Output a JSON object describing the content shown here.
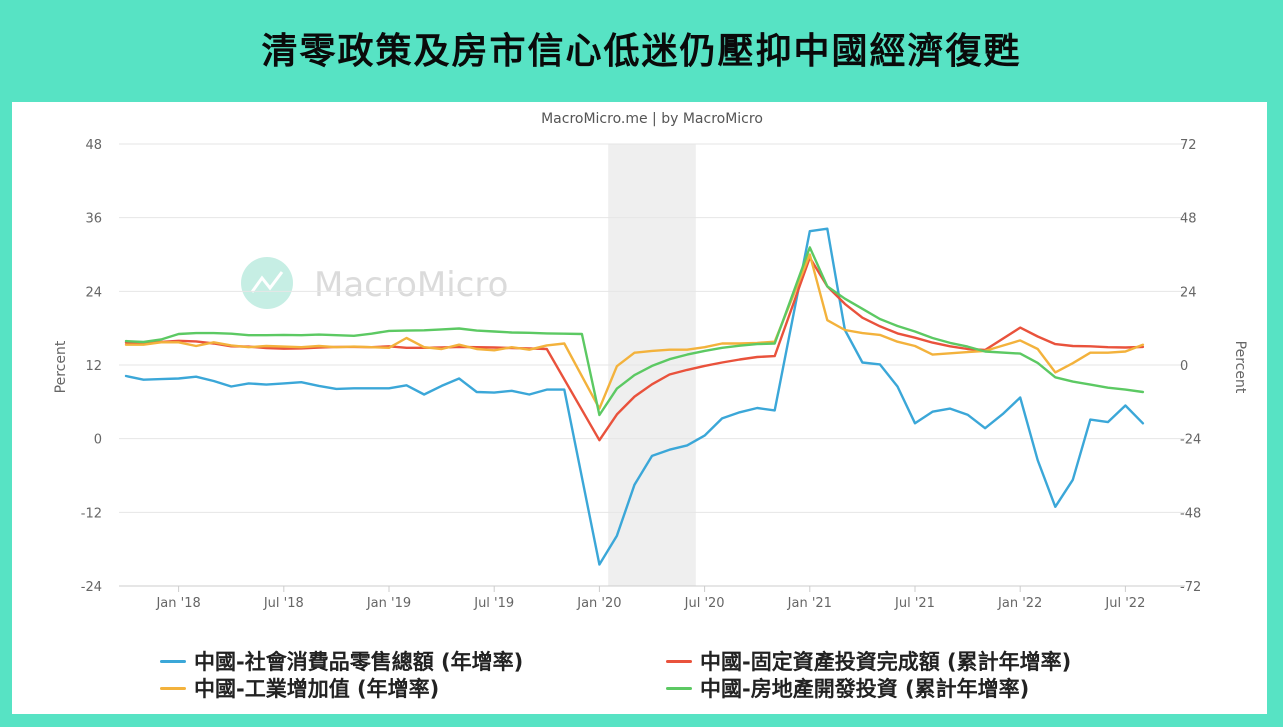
{
  "headline": "清零政策及房市信心低迷仍壓抑中國經濟復甦",
  "chart_data": {
    "type": "line",
    "subtitle": "MacroMicro.me | by MacroMicro",
    "watermark": "MacroMicro",
    "ylabel_left": "Percent",
    "ylabel_right": "Percent",
    "ylim_left": [
      -24,
      48
    ],
    "ylim_right": [
      -72,
      72
    ],
    "yticks_left": [
      "48",
      "36",
      "24",
      "12",
      "0",
      "-12",
      "-24"
    ],
    "yticks_right": [
      "72",
      "48",
      "24",
      "0",
      "-24",
      "-48",
      "-72"
    ],
    "xticks": [
      "Jan '18",
      "Jul '18",
      "Jan '19",
      "Jul '19",
      "Jan '20",
      "Jul '20",
      "Jan '21",
      "Jul '21",
      "Jan '22",
      "Jul '22"
    ],
    "recession_shading": [
      "2020-01",
      "2020-06"
    ],
    "x": [
      "2017-10",
      "2017-11",
      "2017-12",
      "2018-01",
      "2018-02",
      "2018-03",
      "2018-04",
      "2018-05",
      "2018-06",
      "2018-07",
      "2018-08",
      "2018-09",
      "2018-10",
      "2018-11",
      "2018-12",
      "2019-01",
      "2019-02",
      "2019-03",
      "2019-04",
      "2019-05",
      "2019-06",
      "2019-07",
      "2019-08",
      "2019-09",
      "2019-10",
      "2019-11",
      "2019-12",
      "2020-01",
      "2020-02",
      "2020-03",
      "2020-04",
      "2020-05",
      "2020-06",
      "2020-07",
      "2020-08",
      "2020-09",
      "2020-10",
      "2020-11",
      "2020-12",
      "2021-01",
      "2021-02",
      "2021-03",
      "2021-04",
      "2021-05",
      "2021-06",
      "2021-07",
      "2021-08",
      "2021-09",
      "2021-10",
      "2021-11",
      "2021-12",
      "2022-01",
      "2022-02",
      "2022-03",
      "2022-04",
      "2022-05",
      "2022-06",
      "2022-07",
      "2022-08",
      "2022-09"
    ],
    "series": [
      {
        "name": "中國-社會消費品零售總額 (年增率)",
        "axis": "left",
        "color": "#3ba7d8",
        "values": [
          10.2,
          9.6,
          9.7,
          9.8,
          10.1,
          9.4,
          8.5,
          9.0,
          8.8,
          9.0,
          9.2,
          8.6,
          8.1,
          8.2,
          8.2,
          8.2,
          8.7,
          7.2,
          8.6,
          9.8,
          7.6,
          7.5,
          7.8,
          7.2,
          8.0,
          8.0,
          null,
          -20.5,
          -15.8,
          -7.5,
          -2.8,
          -1.8,
          -1.1,
          0.5,
          3.3,
          4.3,
          5.0,
          4.6,
          null,
          33.8,
          34.2,
          17.7,
          12.4,
          12.1,
          8.5,
          2.5,
          4.4,
          4.9,
          3.9,
          1.7,
          4.0,
          6.7,
          -3.5,
          -11.1,
          -6.7,
          3.1,
          2.7,
          5.4,
          2.5,
          null
        ]
      },
      {
        "name": "中國-固定資產投資完成額 (累計年增率)",
        "axis": "right",
        "color": "#e9523c",
        "values": [
          7.3,
          7.2,
          7.5,
          7.9,
          7.7,
          7.0,
          6.1,
          6.0,
          5.5,
          5.3,
          5.4,
          5.7,
          5.9,
          5.9,
          5.8,
          6.1,
          5.6,
          5.6,
          5.7,
          5.9,
          5.8,
          5.7,
          5.5,
          5.4,
          5.2,
          null,
          null,
          -24.5,
          -16.1,
          -10.3,
          -6.3,
          -3.1,
          -1.6,
          -0.3,
          0.8,
          1.8,
          2.6,
          2.9,
          null,
          35.0,
          25.6,
          19.9,
          15.4,
          12.6,
          10.3,
          8.9,
          7.3,
          6.1,
          5.2,
          4.9,
          null,
          12.2,
          9.3,
          6.8,
          6.2,
          6.1,
          5.8,
          5.7,
          5.9,
          null
        ]
      },
      {
        "name": "中國-工業增加值 (年增率)",
        "axis": "left",
        "color": "#f3b23c",
        "values": [
          15.3,
          15.3,
          15.7,
          15.7,
          15.1,
          15.7,
          15.2,
          14.9,
          15.1,
          15.0,
          14.9,
          15.1,
          14.9,
          15.0,
          14.9,
          14.8,
          16.4,
          14.9,
          14.6,
          15.3,
          14.6,
          14.4,
          14.9,
          14.5,
          15.2,
          15.5,
          null,
          4.9,
          11.8,
          14.0,
          14.3,
          14.5,
          14.5,
          14.9,
          15.5,
          15.5,
          15.6,
          15.8,
          null,
          30.0,
          19.3,
          17.7,
          17.2,
          16.9,
          15.8,
          15.1,
          13.7,
          13.9,
          14.1,
          14.3,
          null,
          16.0,
          14.6,
          10.8,
          12.3,
          14.0,
          14.0,
          14.2,
          15.3,
          null
        ]
      },
      {
        "name": "中國-房地產開發投資 (累計年增率)",
        "axis": "right",
        "color": "#5cc963",
        "values": [
          7.8,
          7.5,
          8.3,
          10.1,
          10.4,
          10.4,
          10.2,
          9.7,
          9.7,
          9.8,
          9.7,
          9.9,
          9.7,
          9.5,
          10.2,
          11.1,
          11.2,
          11.3,
          11.6,
          11.9,
          11.2,
          10.9,
          10.6,
          10.5,
          10.3,
          10.2,
          10.1,
          -16.3,
          -7.7,
          -3.3,
          -0.3,
          1.9,
          3.4,
          4.6,
          5.6,
          6.3,
          6.8,
          7.0,
          null,
          38.3,
          25.6,
          21.6,
          18.3,
          15.0,
          12.7,
          10.9,
          8.8,
          7.2,
          6.0,
          4.4,
          null,
          3.7,
          0.7,
          -4.0,
          -5.4,
          -6.4,
          -7.4,
          -8.0,
          -8.8,
          null
        ]
      }
    ]
  },
  "legend": [
    {
      "label": "中國-社會消費品零售總額 (年增率)",
      "color": "#3ba7d8"
    },
    {
      "label": "中國-固定資產投資完成額 (累計年增率)",
      "color": "#e9523c"
    },
    {
      "label": "中國-工業增加值 (年增率)",
      "color": "#f3b23c"
    },
    {
      "label": "中國-房地產開發投資 (累計年增率)",
      "color": "#5cc963"
    }
  ]
}
